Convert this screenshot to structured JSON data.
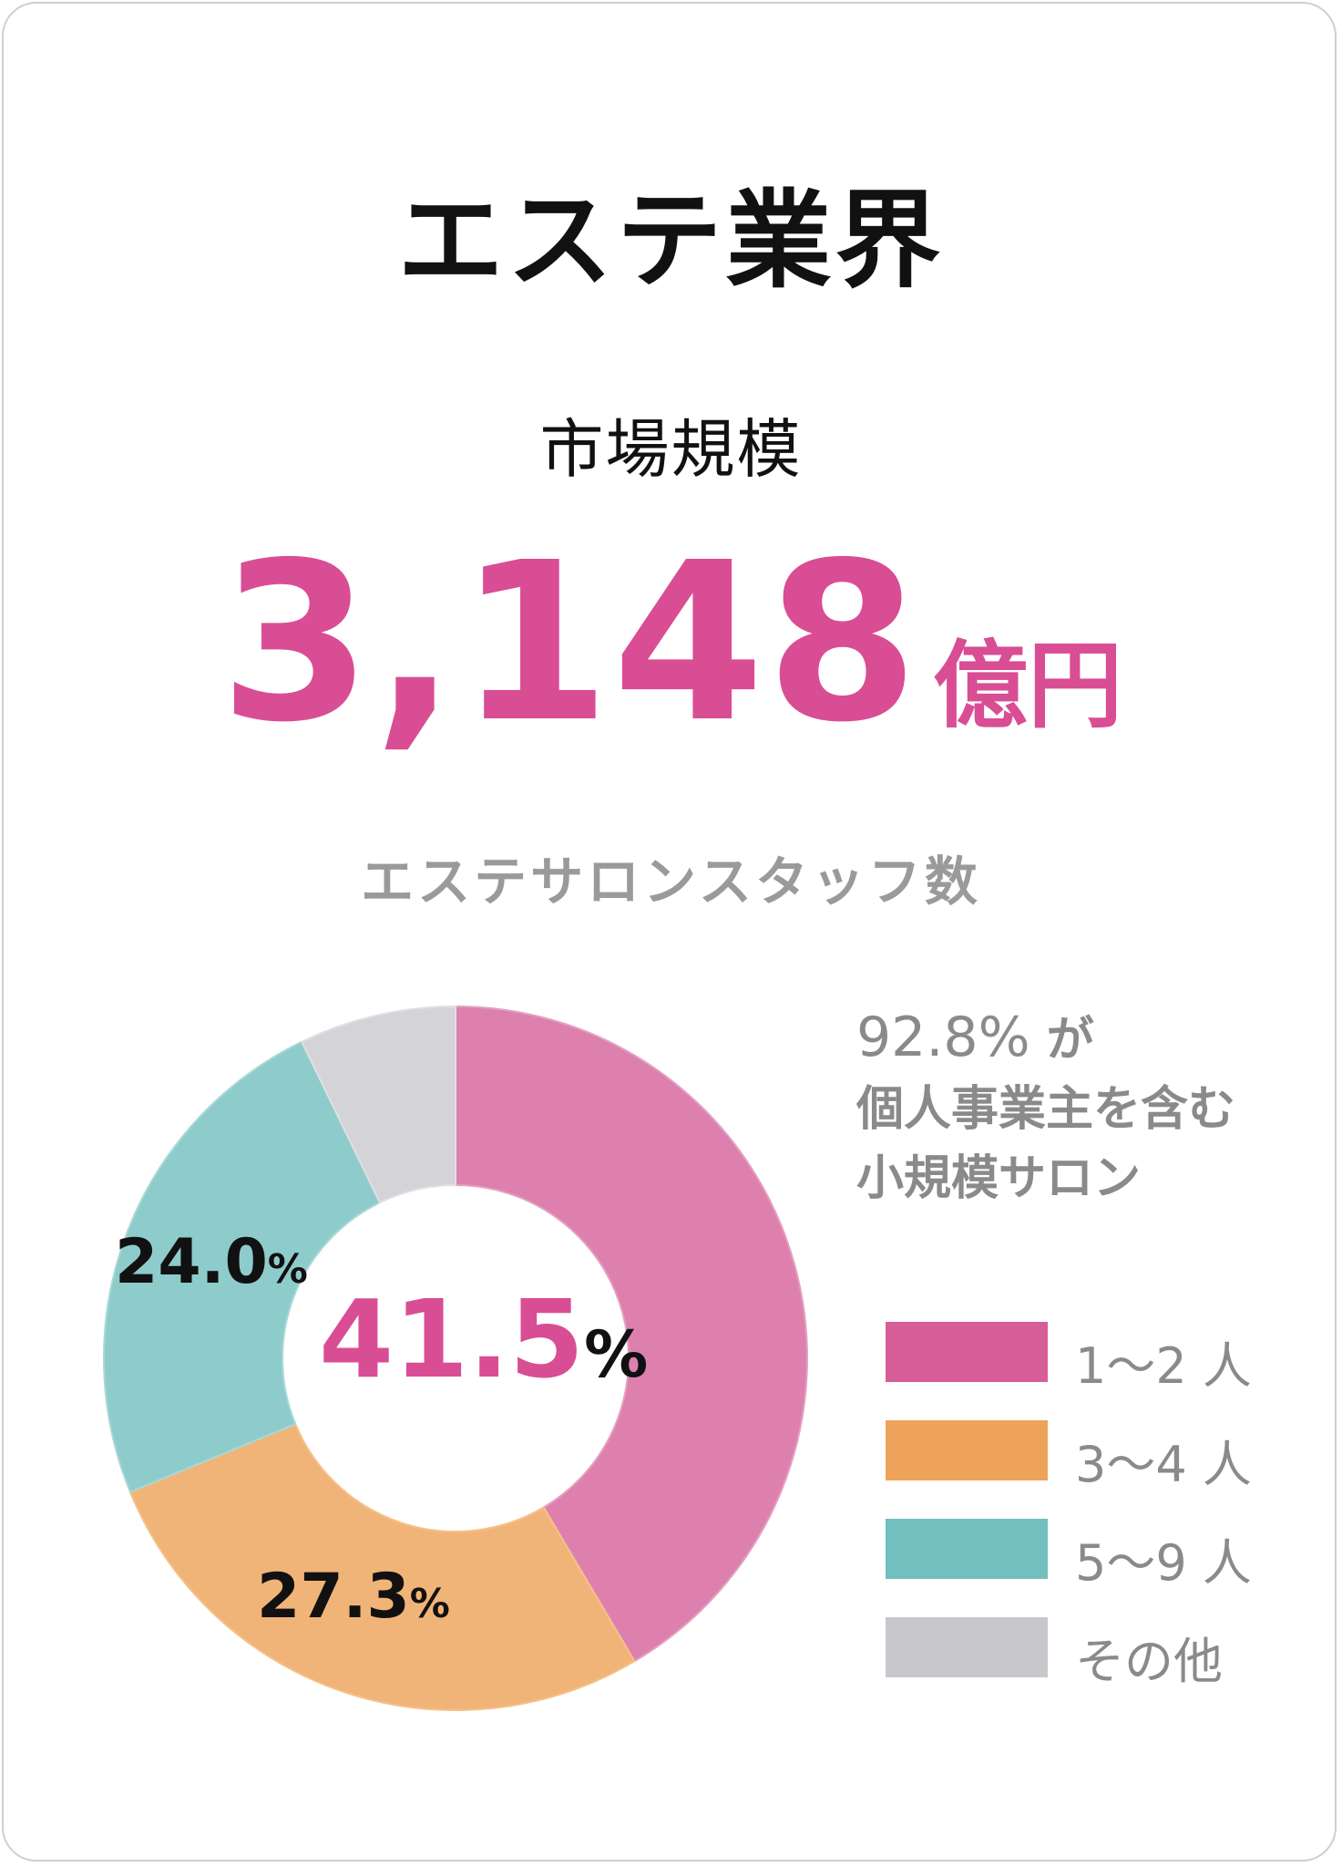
{
  "header": {
    "title": "エステ業界",
    "market_label": "市場規模",
    "market_value": "3,148",
    "market_unit": "億円"
  },
  "chart_data": {
    "type": "pie",
    "variant": "donut",
    "title": "エステサロンスタッフ数",
    "categories": [
      "1〜2 人",
      "3〜4 人",
      "5〜9 人",
      "その他"
    ],
    "values": [
      41.5,
      27.3,
      24.0,
      7.2
    ],
    "labels": [
      "41.5",
      "27.3",
      "24.0",
      ""
    ],
    "label_unit": "%",
    "colors": [
      "#dd80ae",
      "#f1b478",
      "#8ecccc",
      "#d4d4d8"
    ],
    "legend_colors": [
      "#d75d97",
      "#eea35a",
      "#72bfbf",
      "#c8c8cc"
    ],
    "legend_position": "right",
    "annotation": [
      "92.8%",
      "が",
      "個人事業主を含む",
      "小規模サロン"
    ]
  }
}
